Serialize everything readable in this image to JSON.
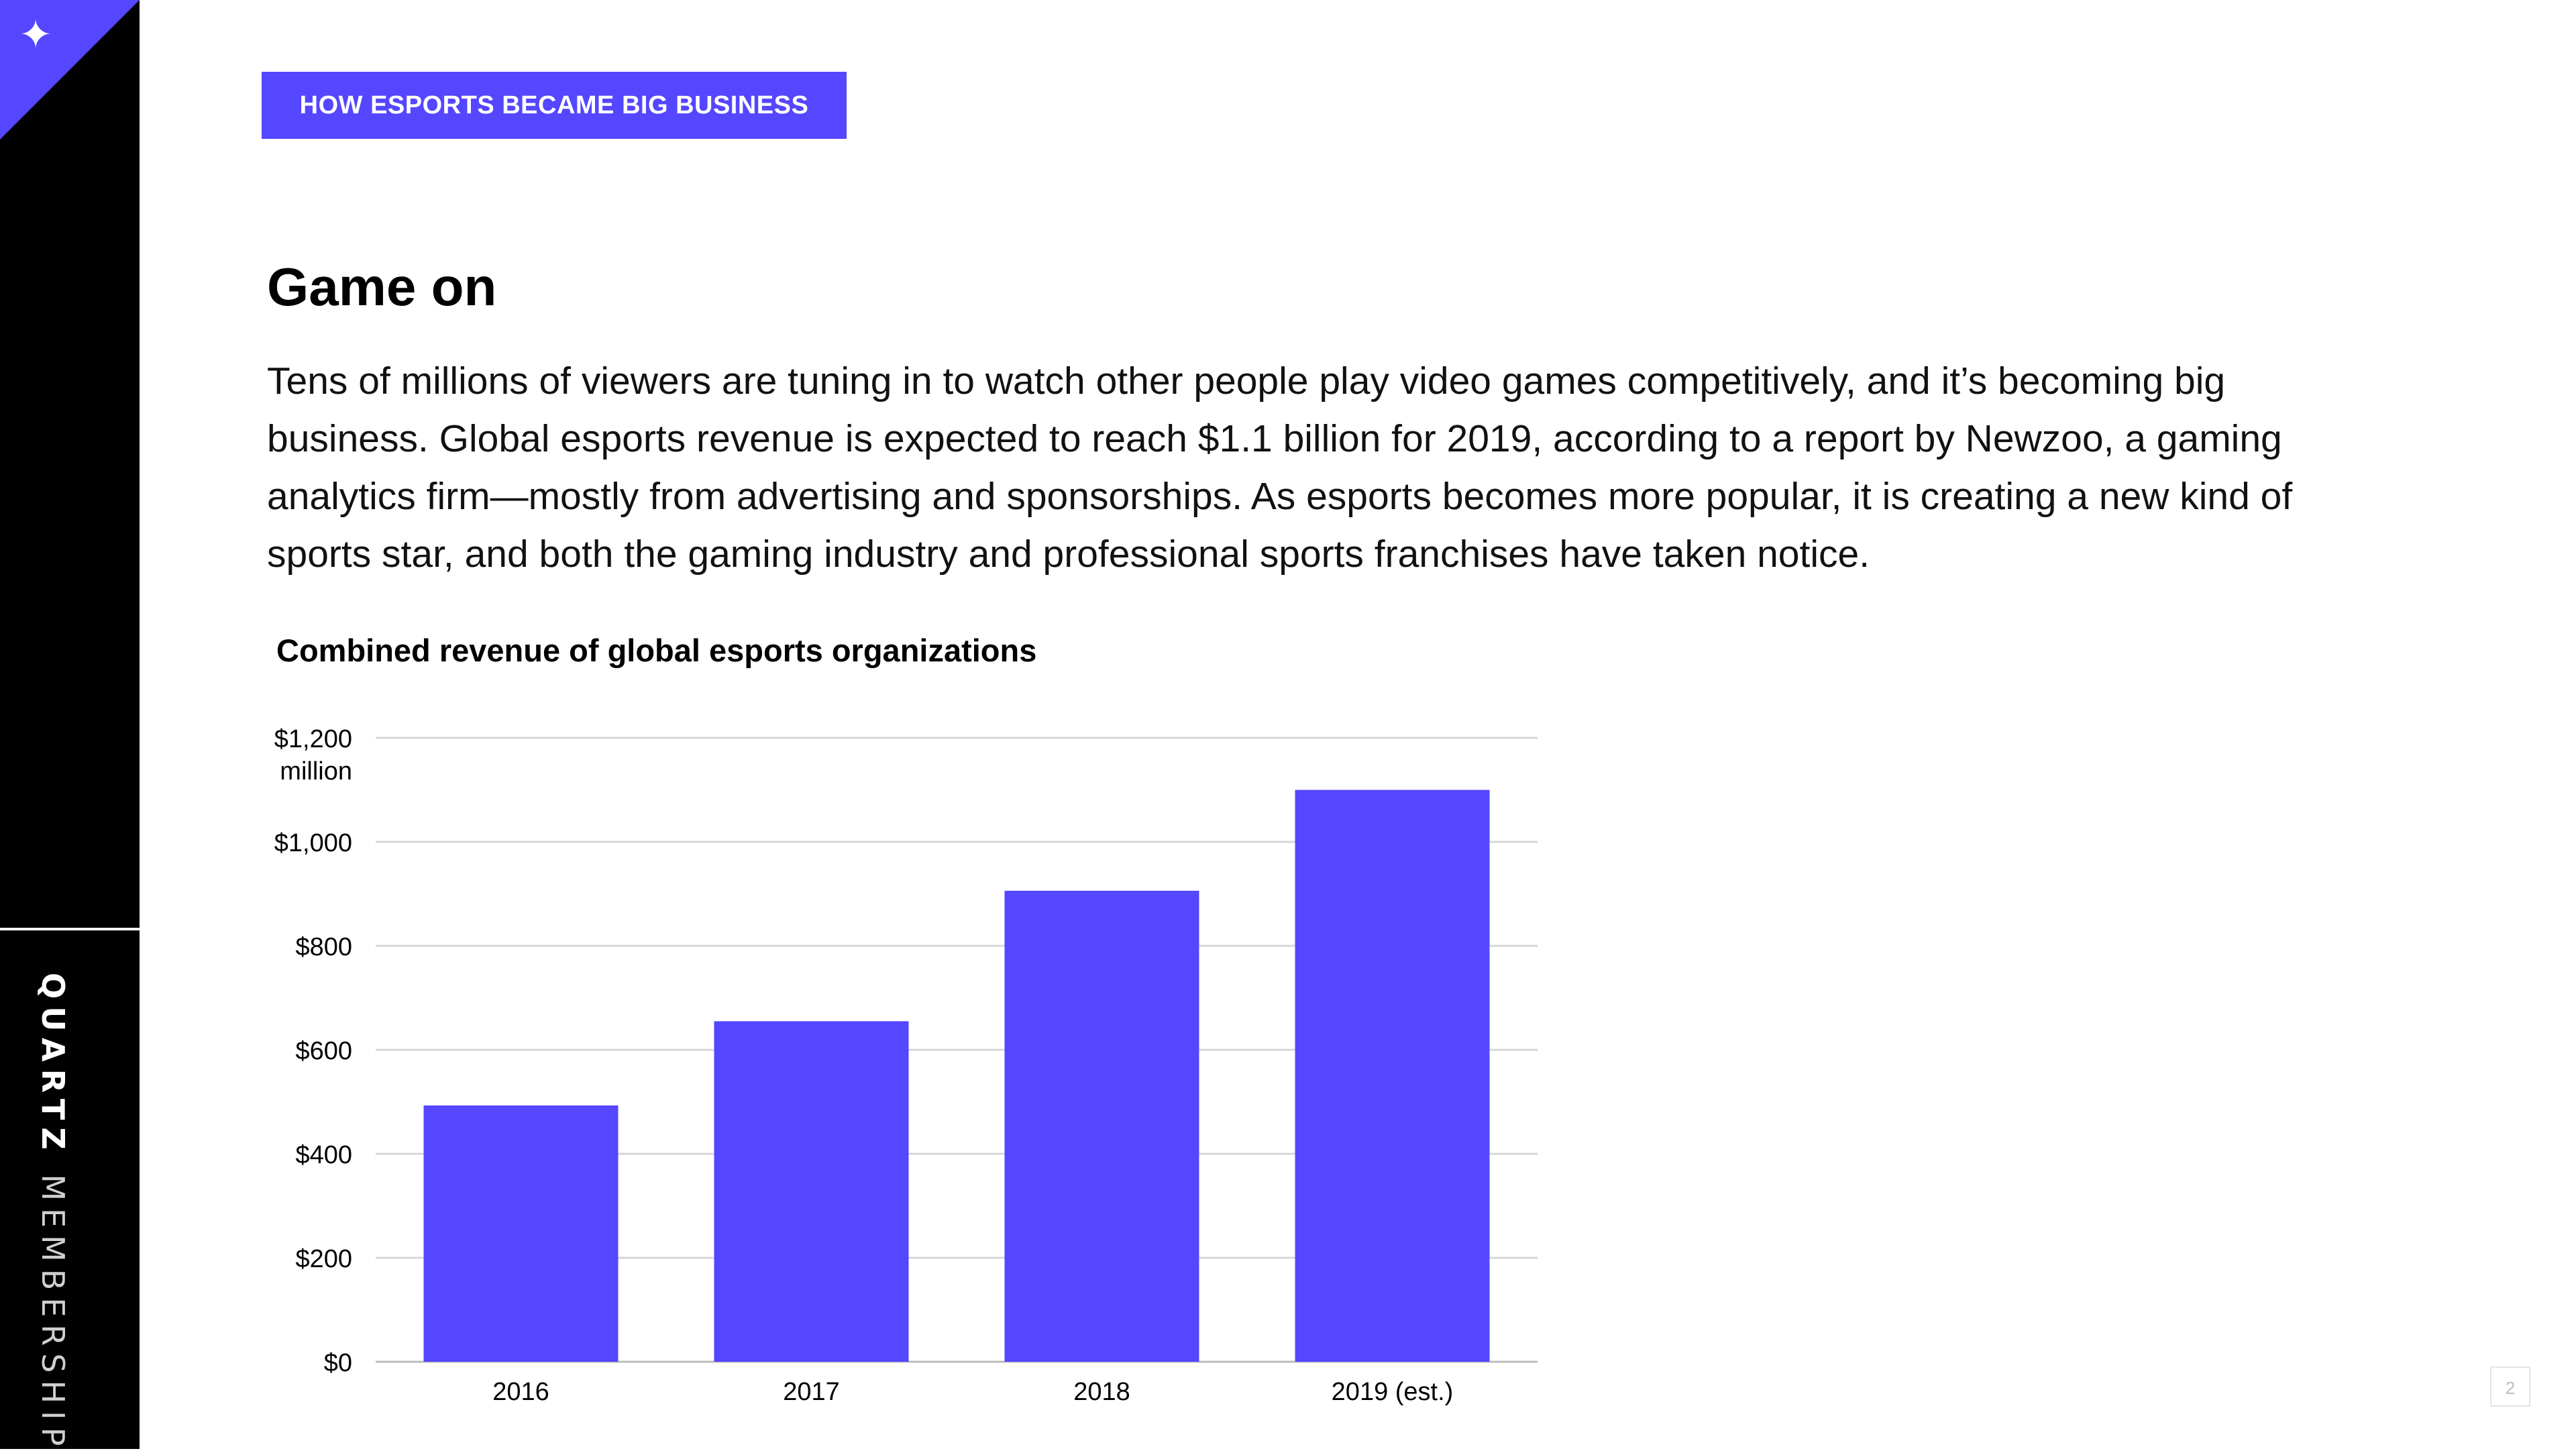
{
  "sidebar": {
    "icon": "sparkle-star-icon",
    "brand_primary": "QUARTZ",
    "brand_secondary": "MEMBERSHIP"
  },
  "kicker": "HOW ESPORTS BECAME BIG BUSINESS",
  "heading": "Game on",
  "body": "Tens of millions of viewers are tuning in to watch other people play video games competitively, and it’s becoming big business. Global esports revenue is expected to reach $1.1 billion for 2019, according to a report by Newzoo, a gaming analytics firm—mostly from advertising and sponsorships. As esports becomes more popular, it is creating a new kind of sports star, and both the gaming industry and professional sports franchises have taken notice.",
  "page_number": "2",
  "colors": {
    "accent": "#5546ff",
    "sidebar": "#000000"
  },
  "chart_data": {
    "type": "bar",
    "title": "Combined revenue of global esports organizations",
    "categories": [
      "2016",
      "2017",
      "2018",
      "2019 (est.)"
    ],
    "values": [
      493,
      655,
      906,
      1100
    ],
    "ylim": [
      0,
      1200
    ],
    "yticks": [
      {
        "value": 0,
        "label": "$0"
      },
      {
        "value": 200,
        "label": "$200"
      },
      {
        "value": 400,
        "label": "$400"
      },
      {
        "value": 600,
        "label": "$600"
      },
      {
        "value": 800,
        "label": "$800"
      },
      {
        "value": 1000,
        "label": "$1,000"
      },
      {
        "value": 1200,
        "label": "$1,200"
      }
    ],
    "yunit": "million",
    "grid": true,
    "bar_color": "#5546ff"
  }
}
